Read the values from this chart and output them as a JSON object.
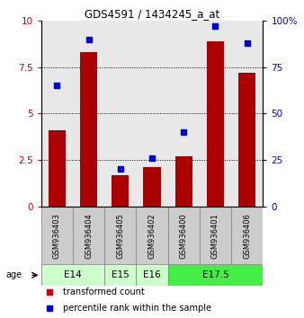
{
  "title": "GDS4591 / 1434245_a_at",
  "samples": [
    "GSM936403",
    "GSM936404",
    "GSM936405",
    "GSM936402",
    "GSM936400",
    "GSM936401",
    "GSM936406"
  ],
  "transformed_count": [
    4.1,
    8.3,
    1.7,
    2.1,
    2.7,
    8.9,
    7.2
  ],
  "percentile_rank": [
    65,
    90,
    20,
    26,
    40,
    97,
    88
  ],
  "bar_color": "#aa0000",
  "marker_color": "#0000cc",
  "ylim_left": [
    0,
    10
  ],
  "ylim_right": [
    0,
    100
  ],
  "yticks_left": [
    0,
    2.5,
    5,
    7.5,
    10
  ],
  "ytick_labels_left": [
    "0",
    "2.5",
    "5",
    "7.5",
    "10"
  ],
  "yticks_right": [
    0,
    25,
    50,
    75,
    100
  ],
  "ytick_labels_right": [
    "0",
    "25",
    "50",
    "75",
    "100%"
  ],
  "age_groups": [
    {
      "label": "E14",
      "start": 0,
      "end": 2,
      "color": "#ccffcc"
    },
    {
      "label": "E15",
      "start": 2,
      "end": 3,
      "color": "#ccffcc"
    },
    {
      "label": "E16",
      "start": 3,
      "end": 4,
      "color": "#ccffcc"
    },
    {
      "label": "E17.5",
      "start": 4,
      "end": 7,
      "color": "#44ee44"
    }
  ],
  "age_label": "age",
  "legend_items": [
    {
      "color": "#cc0000",
      "label": "transformed count"
    },
    {
      "color": "#0000cc",
      "label": "percentile rank within the sample"
    }
  ],
  "grid_color": "#000000",
  "background_color": "#ffffff",
  "plot_bg_color": "#e8e8e8",
  "sample_box_color": "#cccccc",
  "sample_box_edge": "#888888"
}
